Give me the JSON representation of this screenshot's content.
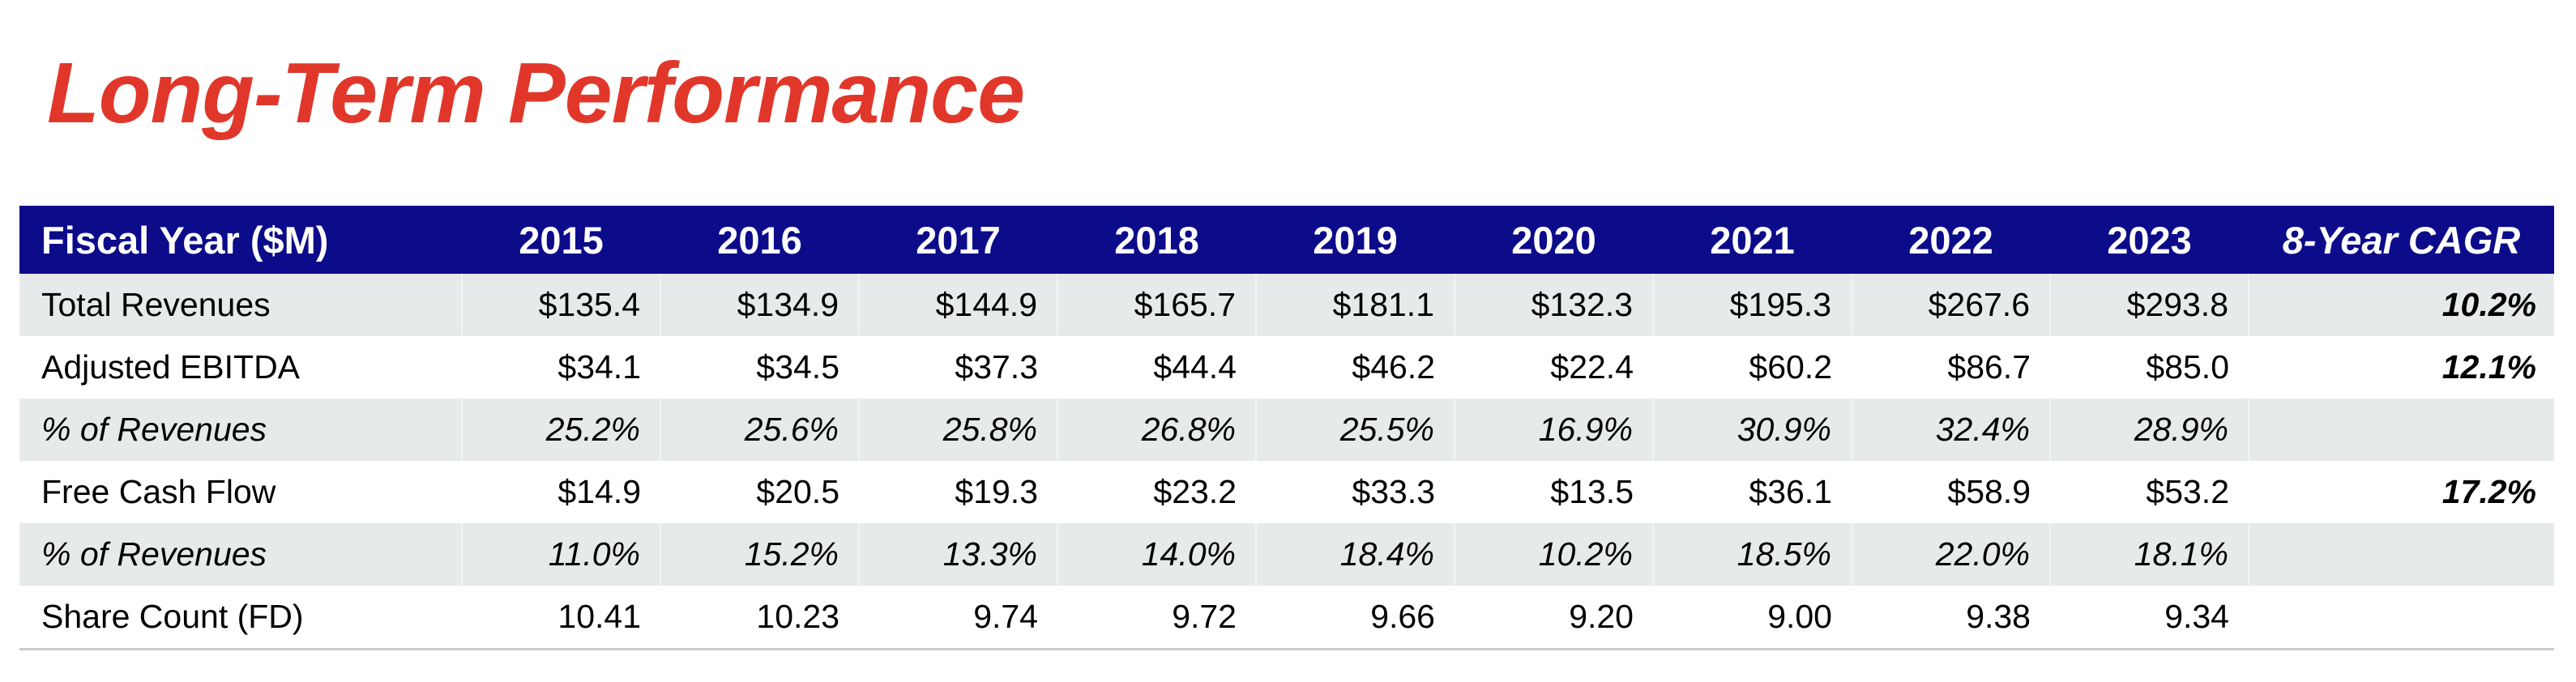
{
  "title": "Long-Term Performance",
  "colors": {
    "title": "#e1372a",
    "header_bg": "#0c0b8a",
    "header_text": "#ffffff",
    "row_shade": "#e7eaea"
  },
  "table": {
    "header": {
      "label": "Fiscal Year ($M)",
      "years": [
        "2015",
        "2016",
        "2017",
        "2018",
        "2019",
        "2020",
        "2021",
        "2022",
        "2023"
      ],
      "cagr": "8-Year CAGR"
    },
    "rows": [
      {
        "label": "Total Revenues",
        "values": [
          "$135.4",
          "$134.9",
          "$144.9",
          "$165.7",
          "$181.1",
          "$132.3",
          "$195.3",
          "$267.6",
          "$293.8"
        ],
        "cagr": "10.2%"
      },
      {
        "label": "Adjusted EBITDA",
        "values": [
          "$34.1",
          "$34.5",
          "$37.3",
          "$44.4",
          "$46.2",
          "$22.4",
          "$60.2",
          "$86.7",
          "$85.0"
        ],
        "cagr": "12.1%"
      },
      {
        "label": "% of Revenues",
        "values": [
          "25.2%",
          "25.6%",
          "25.8%",
          "26.8%",
          "25.5%",
          "16.9%",
          "30.9%",
          "32.4%",
          "28.9%"
        ],
        "cagr": ""
      },
      {
        "label": "Free Cash Flow",
        "values": [
          "$14.9",
          "$20.5",
          "$19.3",
          "$23.2",
          "$33.3",
          "$13.5",
          "$36.1",
          "$58.9",
          "$53.2"
        ],
        "cagr": "17.2%"
      },
      {
        "label": "% of Revenues",
        "values": [
          "11.0%",
          "15.2%",
          "13.3%",
          "14.0%",
          "18.4%",
          "10.2%",
          "18.5%",
          "22.0%",
          "18.1%"
        ],
        "cagr": ""
      },
      {
        "label": "Share Count (FD)",
        "values": [
          "10.41",
          "10.23",
          "9.74",
          "9.72",
          "9.66",
          "9.20",
          "9.00",
          "9.38",
          "9.34"
        ],
        "cagr": ""
      }
    ]
  }
}
